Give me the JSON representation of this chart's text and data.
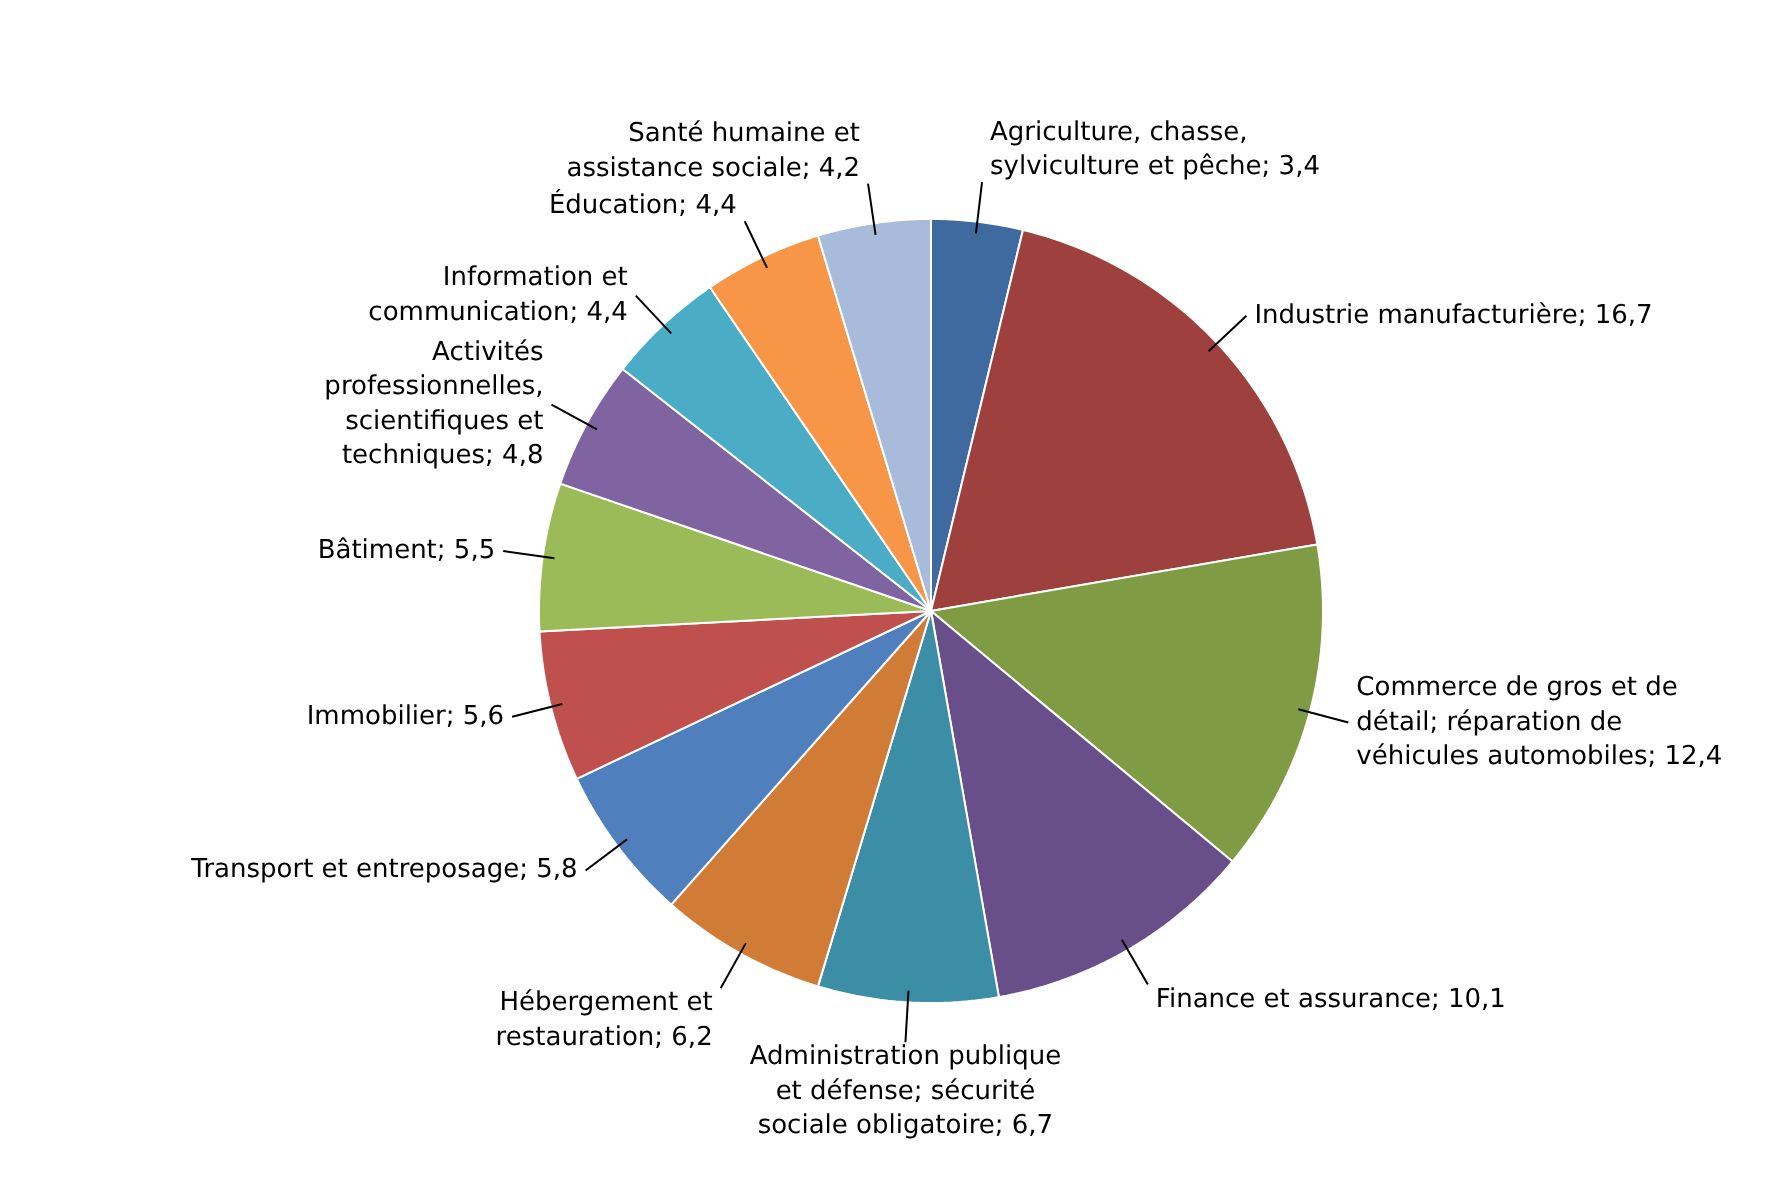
{
  "chart_data": {
    "type": "pie",
    "categories": [
      "Agriculture, chasse, sylviculture et pêche",
      "Industrie manufacturière",
      "Commerce de gros et de détail; réparation de véhicules automobiles",
      "Finance et assurance",
      "Administration publique et défense; sécurité sociale obligatoire",
      "Hébergement et restauration",
      "Transport et entreposage",
      "Immobilier",
      "Bâtiment",
      "Activités professionnelles, scientifiques et techniques",
      "Information et communication",
      "Éducation",
      "Santé humaine et assistance sociale"
    ],
    "values": [
      3.4,
      16.7,
      12.4,
      10.1,
      6.7,
      6.2,
      5.8,
      5.6,
      5.5,
      4.8,
      4.4,
      4.4,
      4.2
    ],
    "value_labels": [
      "3,4",
      "16,7",
      "12,4",
      "10,1",
      "6,7",
      "6,2",
      "5,8",
      "5,6",
      "5,5",
      "4,8",
      "4,4",
      "4,4",
      "4,2"
    ],
    "colors": [
      "#3e6aa0",
      "#9e413e",
      "#7f9c45",
      "#684f8a",
      "#3b8ea5",
      "#d17c36",
      "#4f80bd",
      "#c0504d",
      "#9bbb59",
      "#8064a2",
      "#4bacc6",
      "#f79646",
      "#a9bbdb"
    ],
    "legend": false
  }
}
